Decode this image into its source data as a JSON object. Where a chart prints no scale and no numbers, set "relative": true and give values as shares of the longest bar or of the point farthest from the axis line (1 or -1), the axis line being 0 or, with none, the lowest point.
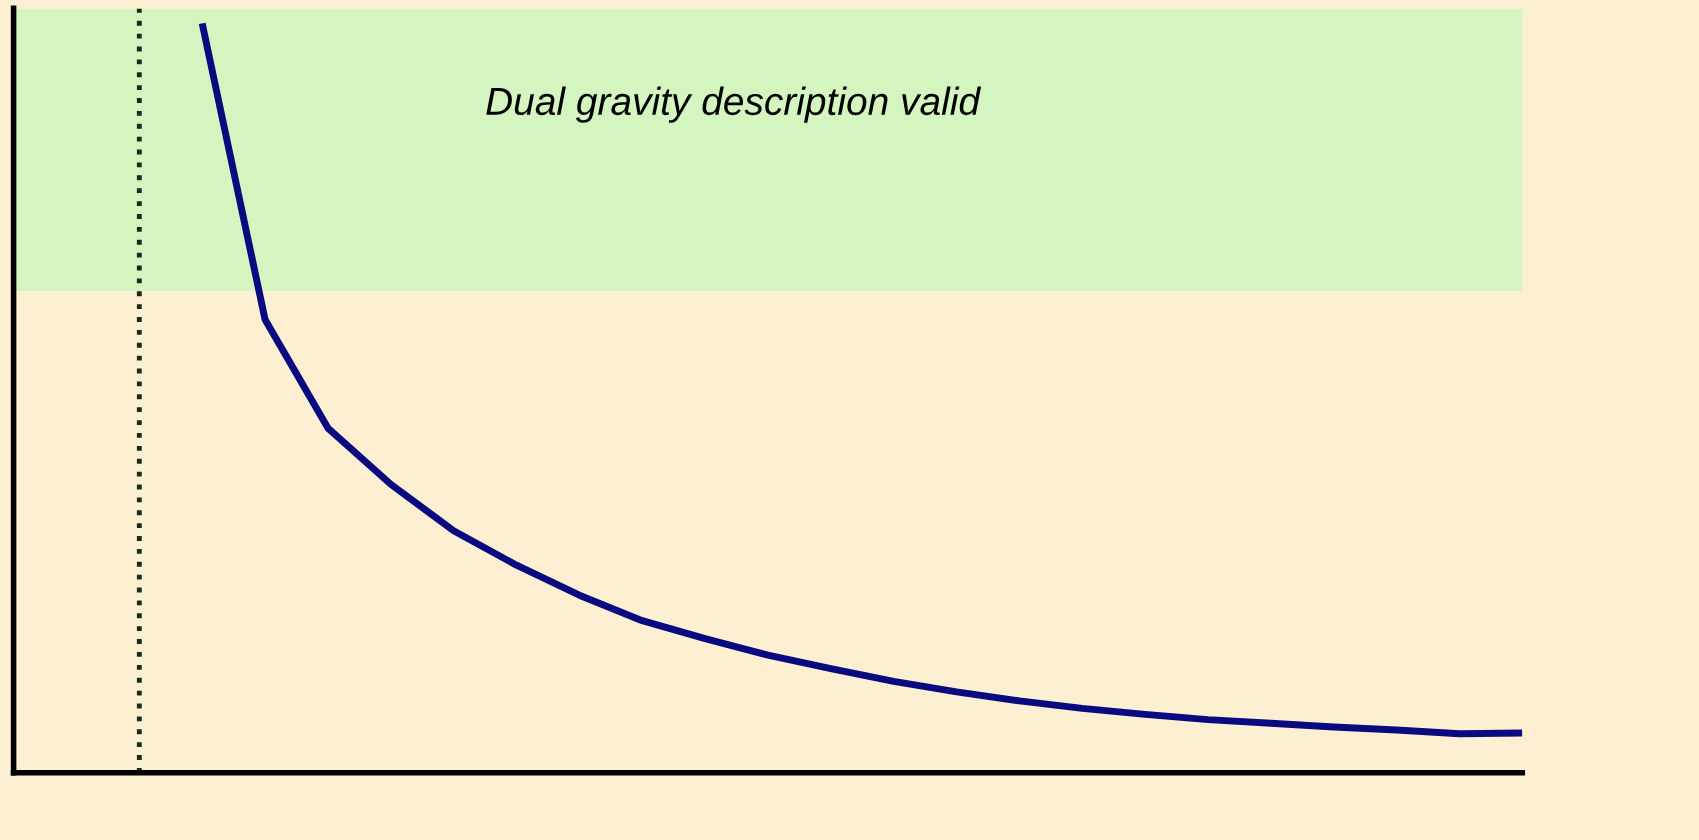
{
  "chart_data": {
    "type": "line",
    "relative": true,
    "legend": false,
    "tick_labels": false,
    "categories": [
      null,
      null,
      null,
      null,
      null,
      null,
      null,
      null,
      null,
      null,
      null,
      null,
      null,
      null,
      null,
      null,
      null,
      null,
      null,
      null,
      null,
      null,
      null,
      null,
      null
    ],
    "series": [
      {
        "color": "#0a0a80",
        "values": [
          null,
          null,
          null,
          1.0,
          0.605,
          0.46,
          0.385,
          0.323,
          0.277,
          0.237,
          0.203,
          0.179,
          0.157,
          0.139,
          0.122,
          0.108,
          0.096,
          0.086,
          0.078,
          0.071,
          0.066,
          0.061,
          0.057,
          0.052,
          0.053
        ]
      }
    ],
    "bands": [
      {
        "axis": "y",
        "from": 0.643,
        "to": 1.02,
        "label": "Dual gravity description valid",
        "color": "#d4f5c0"
      }
    ]
  }
}
